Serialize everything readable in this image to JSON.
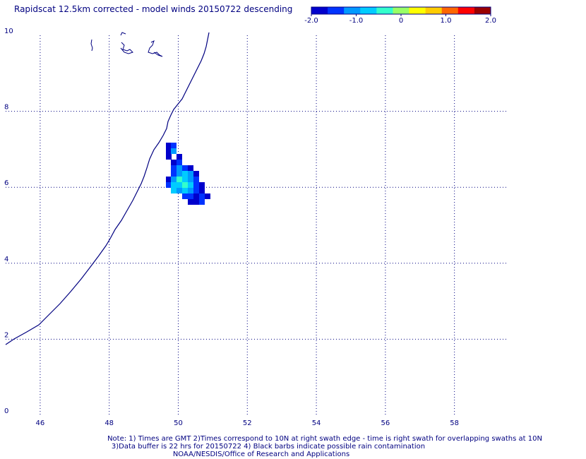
{
  "title": "Rapidscat 12.5km corrected - model winds 20150722 descending",
  "colorbar": {
    "colors": [
      "#0000cc",
      "#0033ff",
      "#0099ff",
      "#00ccff",
      "#33ffcc",
      "#99ff66",
      "#ffff00",
      "#ffcc00",
      "#ff6600",
      "#ff0000",
      "#990000"
    ],
    "ticks": [
      "-2.0",
      "-1.0",
      "0",
      "1.0",
      "2.0"
    ]
  },
  "map": {
    "xlim": [
      45,
      59.5
    ],
    "ylim": [
      0,
      10
    ],
    "x_ticks": [
      "46",
      "48",
      "50",
      "52",
      "54",
      "56",
      "58"
    ],
    "y_ticks": [
      "0",
      "2",
      "4",
      "6",
      "8",
      "10"
    ],
    "coastline_color": "#000080",
    "grid_color": "#000080"
  },
  "footer": {
    "line1": "Note: 1) Times are GMT 2)Times correspond to 10N at right swath edge - time is right swath for overlapping swaths at 10N",
    "line2": "3)Data buffer is 22 hrs for 20150722 4) Black barbs indicate possible rain contamination",
    "line3": "NOAA/NESDIS/Office of Research and Applications"
  }
}
